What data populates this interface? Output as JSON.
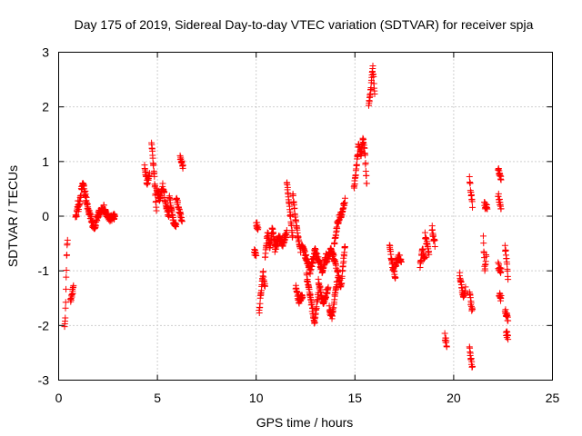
{
  "chart_data": {
    "type": "scatter",
    "title": "Day 175 of 2019, Sidereal Day-to-day VTEC variation (SDTVAR) for receiver spja",
    "xlabel": "GPS time / hours",
    "ylabel": "SDTVAR / TECUs",
    "xlim": [
      0,
      25
    ],
    "ylim": [
      -3,
      3
    ],
    "xticks": [
      0,
      5,
      10,
      15,
      20,
      25
    ],
    "yticks": [
      -3,
      -2,
      -1,
      0,
      1,
      2,
      3
    ],
    "xtick_labels": [
      "0",
      "5",
      "10",
      "15",
      "20",
      "25"
    ],
    "ytick_labels": [
      "-3",
      "-2",
      "-1",
      "0",
      "1",
      "2",
      "3"
    ],
    "grid": true,
    "marker": "plus",
    "color": "#ff0000",
    "segments": [
      {
        "x0": 0.3,
        "x1": 0.45,
        "y": [
          -2.05,
          -1.7,
          -0.8,
          -0.4
        ]
      },
      {
        "x0": 0.6,
        "x1": 0.75,
        "y": [
          -1.55,
          -1.3
        ]
      },
      {
        "x0": 0.85,
        "x1": 1.0,
        "y": [
          -0.05,
          0.05,
          0.3
        ]
      },
      {
        "x0": 1.0,
        "x1": 1.35,
        "y": [
          0.1,
          0.4,
          0.65,
          0.3
        ]
      },
      {
        "x0": 1.35,
        "x1": 1.8,
        "y": [
          0.4,
          0.1,
          -0.05,
          -0.25
        ]
      },
      {
        "x0": 1.8,
        "x1": 2.45,
        "y": [
          -0.25,
          0.0,
          0.1,
          0.15,
          0.0
        ]
      },
      {
        "x0": 2.45,
        "x1": 2.85,
        "y": [
          0.0,
          -0.05,
          0.0
        ]
      },
      {
        "x0": 4.35,
        "x1": 4.6,
        "y": [
          0.9,
          0.6,
          0.8
        ]
      },
      {
        "x0": 4.7,
        "x1": 4.95,
        "y": [
          1.35,
          1.0,
          0.6,
          0.1
        ]
      },
      {
        "x0": 4.95,
        "x1": 5.6,
        "y": [
          0.5,
          0.3,
          0.55,
          0.2,
          0.0
        ]
      },
      {
        "x0": 5.6,
        "x1": 5.95,
        "y": [
          0.4,
          -0.05,
          -0.2
        ]
      },
      {
        "x0": 5.95,
        "x1": 6.25,
        "y": [
          0.35,
          0.1,
          -0.1
        ]
      },
      {
        "x0": 6.15,
        "x1": 6.3,
        "y": [
          1.05,
          0.9
        ]
      },
      {
        "x0": 9.9,
        "x1": 10.0,
        "y": [
          -0.65,
          -0.7
        ]
      },
      {
        "x0": 10.0,
        "x1": 10.1,
        "y": [
          -0.15,
          -0.2
        ]
      },
      {
        "x0": 10.15,
        "x1": 10.45,
        "y": [
          -1.75,
          -1.4,
          -1.05,
          -1.3
        ]
      },
      {
        "x0": 10.45,
        "x1": 10.95,
        "y": [
          -0.8,
          -0.3,
          -0.55,
          -0.2,
          -0.5
        ]
      },
      {
        "x0": 10.95,
        "x1": 11.55,
        "y": [
          -0.6,
          -0.4,
          -0.5,
          -0.3
        ]
      },
      {
        "x0": 11.55,
        "x1": 11.85,
        "y": [
          0.65,
          0.1,
          -0.4
        ]
      },
      {
        "x0": 11.85,
        "x1": 12.25,
        "y": [
          0.4,
          0.0,
          -0.4,
          -0.65
        ]
      },
      {
        "x0": 12.0,
        "x1": 12.35,
        "y": [
          -1.3,
          -1.55,
          -1.45
        ]
      },
      {
        "x0": 12.3,
        "x1": 12.95,
        "y": [
          -0.5,
          -0.75,
          -1.0,
          -0.7
        ]
      },
      {
        "x0": 12.55,
        "x1": 13.15,
        "y": [
          -1.1,
          -1.5,
          -1.95,
          -1.4
        ]
      },
      {
        "x0": 12.95,
        "x1": 13.55,
        "y": [
          -0.6,
          -0.8,
          -1.0,
          -0.7
        ]
      },
      {
        "x0": 13.15,
        "x1": 13.65,
        "y": [
          -1.2,
          -1.6,
          -1.3
        ]
      },
      {
        "x0": 13.55,
        "x1": 14.05,
        "y": [
          -0.85,
          -0.6,
          -0.9
        ]
      },
      {
        "x0": 13.7,
        "x1": 14.1,
        "y": [
          -1.7,
          -1.85,
          -1.5,
          -1.2
        ]
      },
      {
        "x0": 13.95,
        "x1": 14.5,
        "y": [
          -0.5,
          -0.1,
          0.05,
          0.3
        ]
      },
      {
        "x0": 14.1,
        "x1": 14.5,
        "y": [
          -1.0,
          -1.3,
          -0.5
        ]
      },
      {
        "x0": 14.95,
        "x1": 15.3,
        "y": [
          0.5,
          0.85,
          1.3,
          1.15
        ]
      },
      {
        "x0": 15.3,
        "x1": 15.6,
        "y": [
          1.05,
          1.4,
          1.2,
          0.55
        ]
      },
      {
        "x0": 15.7,
        "x1": 16.0,
        "y": [
          2.0,
          2.3,
          2.75,
          2.2
        ]
      },
      {
        "x0": 16.75,
        "x1": 17.05,
        "y": [
          -0.5,
          -0.9,
          -1.1
        ]
      },
      {
        "x0": 17.05,
        "x1": 17.35,
        "y": [
          -0.9,
          -0.75,
          -0.8
        ]
      },
      {
        "x0": 18.3,
        "x1": 18.55,
        "y": [
          -0.9,
          -0.6,
          -0.8
        ]
      },
      {
        "x0": 18.55,
        "x1": 18.75,
        "y": [
          -0.35,
          -0.7
        ]
      },
      {
        "x0": 18.9,
        "x1": 19.05,
        "y": [
          -0.2,
          -0.4,
          -0.5
        ]
      },
      {
        "x0": 19.55,
        "x1": 19.65,
        "y": [
          -2.2,
          -2.35
        ]
      },
      {
        "x0": 20.3,
        "x1": 20.6,
        "y": [
          -1.05,
          -1.3,
          -1.5,
          -1.35
        ]
      },
      {
        "x0": 20.8,
        "x1": 20.95,
        "y": [
          -1.4,
          -1.6,
          -1.75
        ]
      },
      {
        "x0": 20.8,
        "x1": 20.95,
        "y": [
          -2.4,
          -2.6,
          -2.8
        ]
      },
      {
        "x0": 20.8,
        "x1": 20.95,
        "y": [
          0.7,
          0.4,
          0.2
        ]
      },
      {
        "x0": 21.5,
        "x1": 21.65,
        "y": [
          -0.4,
          -1.0,
          -0.7
        ]
      },
      {
        "x0": 21.55,
        "x1": 21.7,
        "y": [
          0.2,
          0.15
        ]
      },
      {
        "x0": 22.25,
        "x1": 22.4,
        "y": [
          0.85,
          0.7
        ]
      },
      {
        "x0": 22.25,
        "x1": 22.4,
        "y": [
          0.4,
          0.1
        ]
      },
      {
        "x0": 22.25,
        "x1": 22.4,
        "y": [
          -0.9,
          -1.0
        ]
      },
      {
        "x0": 22.3,
        "x1": 22.4,
        "y": [
          -1.45,
          -1.5
        ]
      },
      {
        "x0": 22.6,
        "x1": 22.75,
        "y": [
          -0.55,
          -0.8,
          -1.1
        ]
      },
      {
        "x0": 22.6,
        "x1": 22.75,
        "y": [
          -1.7,
          -1.9
        ]
      },
      {
        "x0": 22.65,
        "x1": 22.75,
        "y": [
          -2.15,
          -2.2
        ]
      }
    ]
  }
}
